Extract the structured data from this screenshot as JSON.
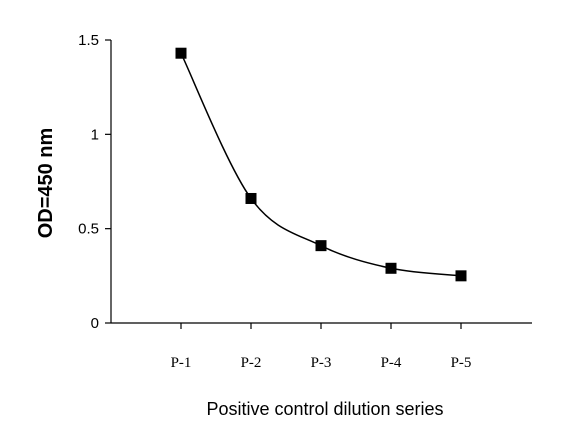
{
  "chart_data": {
    "type": "line",
    "title": "",
    "xlabel": "Positive control dilution series",
    "ylabel": "OD=450 nm",
    "categories": [
      "P-1",
      "P-2",
      "P-3",
      "P-4",
      "P-5"
    ],
    "series": [
      {
        "values": [
          1.43,
          0.66,
          0.41,
          0.29,
          0.25
        ]
      }
    ],
    "ylim": [
      0,
      1.5
    ],
    "yticks": [
      0,
      0.5,
      1,
      1.5
    ],
    "ytick_labels": [
      "0",
      "0.5",
      "1",
      "1.5"
    ],
    "grid": false,
    "legend": "none",
    "marker": "square",
    "line_style": "smooth",
    "colors": {
      "line": "#000000",
      "marker": "#000000",
      "axis": "#000000"
    }
  }
}
